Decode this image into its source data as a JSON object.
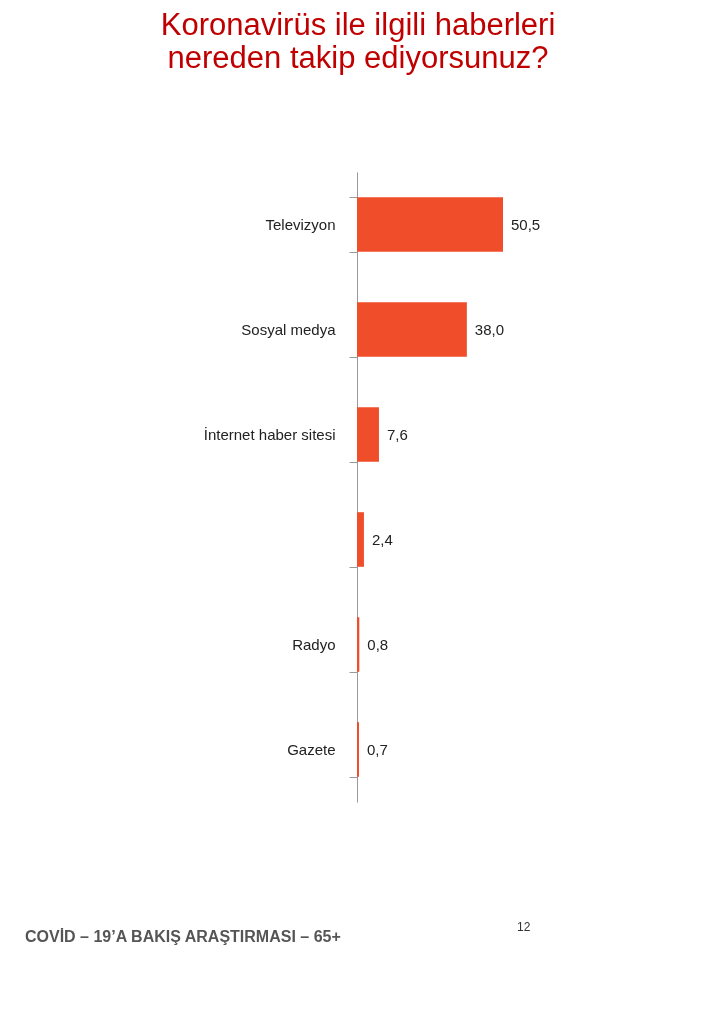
{
  "chart_data": {
    "type": "bar",
    "orientation": "horizontal",
    "title": "Koronavirüs ile ilgili haberleri nereden takip ediyorsunuz?",
    "categories": [
      "Televizyon",
      "Sosyal medya",
      "İnternet haber sitesi",
      null,
      "Radyo",
      "Gazete"
    ],
    "values": [
      50.5,
      38.0,
      7.6,
      2.4,
      0.8,
      0.7
    ],
    "value_labels": [
      "50,5",
      "38,0",
      "7,6",
      "2,4",
      "0,8",
      "0,7"
    ],
    "color": "#f04e2a",
    "grid": false,
    "annotations": [
      "COVİD – 19’A  BAKIŞ ARAŞTIRMASI – 65+",
      "12"
    ]
  }
}
